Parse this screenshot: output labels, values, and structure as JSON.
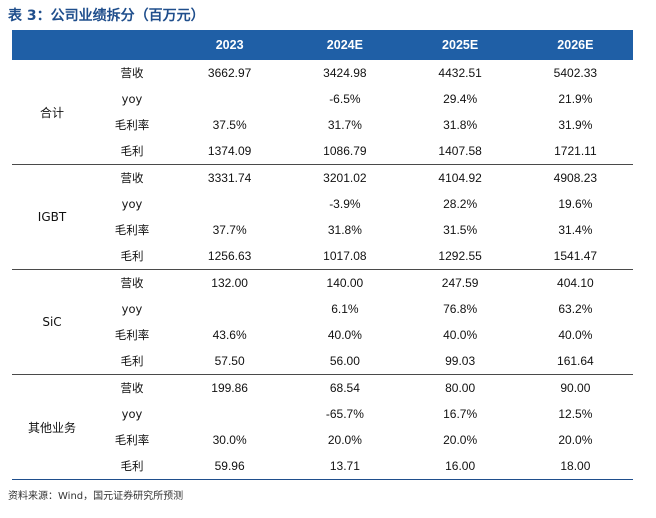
{
  "title": "表 3：公司业绩拆分（百万元）",
  "columns": [
    "2023",
    "2024E",
    "2025E",
    "2026E"
  ],
  "groups": [
    {
      "name": "合计",
      "rows": [
        {
          "label": "营收",
          "values": [
            "3662.97",
            "3424.98",
            "4432.51",
            "5402.33"
          ]
        },
        {
          "label": "yoy",
          "values": [
            "",
            "-6.5%",
            "29.4%",
            "21.9%"
          ]
        },
        {
          "label": "毛利率",
          "values": [
            "37.5%",
            "31.7%",
            "31.8%",
            "31.9%"
          ]
        },
        {
          "label": "毛利",
          "values": [
            "1374.09",
            "1086.79",
            "1407.58",
            "1721.11"
          ]
        }
      ]
    },
    {
      "name": "IGBT",
      "rows": [
        {
          "label": "营收",
          "values": [
            "3331.74",
            "3201.02",
            "4104.92",
            "4908.23"
          ]
        },
        {
          "label": "yoy",
          "values": [
            "",
            "-3.9%",
            "28.2%",
            "19.6%"
          ]
        },
        {
          "label": "毛利率",
          "values": [
            "37.7%",
            "31.8%",
            "31.5%",
            "31.4%"
          ]
        },
        {
          "label": "毛利",
          "values": [
            "1256.63",
            "1017.08",
            "1292.55",
            "1541.47"
          ]
        }
      ]
    },
    {
      "name": "SiC",
      "rows": [
        {
          "label": "营收",
          "values": [
            "132.00",
            "140.00",
            "247.59",
            "404.10"
          ]
        },
        {
          "label": "yoy",
          "values": [
            "",
            "6.1%",
            "76.8%",
            "63.2%"
          ]
        },
        {
          "label": "毛利率",
          "values": [
            "43.6%",
            "40.0%",
            "40.0%",
            "40.0%"
          ]
        },
        {
          "label": "毛利",
          "values": [
            "57.50",
            "56.00",
            "99.03",
            "161.64"
          ]
        }
      ]
    },
    {
      "name": "其他业务",
      "rows": [
        {
          "label": "营收",
          "values": [
            "199.86",
            "68.54",
            "80.00",
            "90.00"
          ]
        },
        {
          "label": "yoy",
          "values": [
            "",
            "-65.7%",
            "16.7%",
            "12.5%"
          ]
        },
        {
          "label": "毛利率",
          "values": [
            "30.0%",
            "20.0%",
            "20.0%",
            "20.0%"
          ]
        },
        {
          "label": "毛利",
          "values": [
            "59.96",
            "13.71",
            "16.00",
            "18.00"
          ]
        }
      ]
    }
  ],
  "source": "资料来源：Wind，国元证券研究所预测",
  "colors": {
    "header_bg": "#1f5fa6",
    "title": "#1f4e8c"
  }
}
